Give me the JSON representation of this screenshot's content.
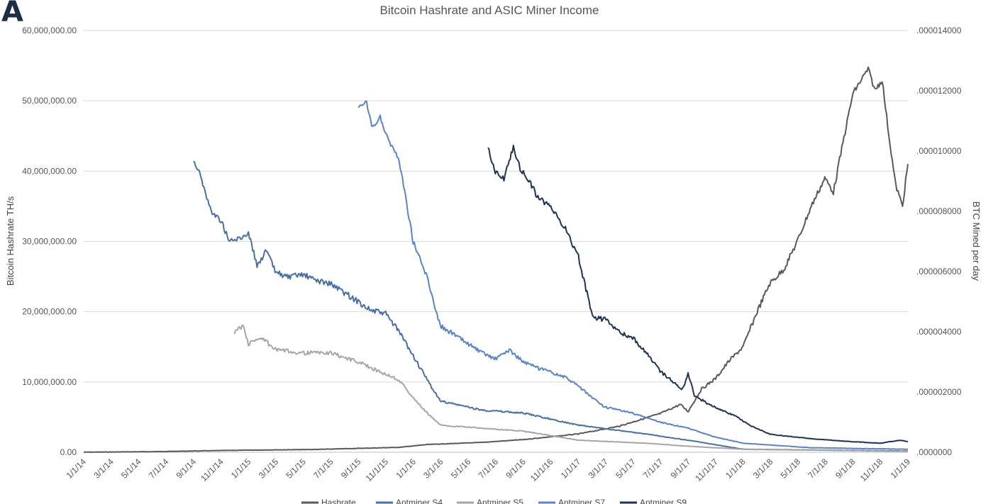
{
  "panel_label": "A",
  "chart_data": {
    "type": "line",
    "title": "Bitcoin Hashrate and ASIC Miner Income",
    "ylabel": "Bitcoin Hashrate TH/s",
    "y2label": "BTC Mined per day",
    "ylim": [
      0,
      60000000
    ],
    "y2lim": [
      0,
      1.4e-05
    ],
    "yticks": [
      "0.00",
      "10,000,000.00",
      "20,000,000.00",
      "30,000,000.00",
      "40,000,000.00",
      "50,000,000.00",
      "60,000,000.00"
    ],
    "y2ticks": [
      ".0000000",
      ".000002000",
      ".000004000",
      ".000006000",
      ".000008000",
      ".000010000",
      ".000012000",
      ".000014000"
    ],
    "xlim": [
      "2014-01-01",
      "2019-01-01"
    ],
    "xticks": [
      "1/1/14",
      "3/1/14",
      "5/1/14",
      "7/1/14",
      "9/1/14",
      "11/1/14",
      "1/1/15",
      "3/1/15",
      "5/1/15",
      "7/1/15",
      "9/1/15",
      "11/1/15",
      "1/1/16",
      "3/1/16",
      "5/1/16",
      "7/1/16",
      "9/1/16",
      "11/1/16",
      "1/1/17",
      "3/1/17",
      "5/1/17",
      "7/1/17",
      "9/1/17",
      "11/1/17",
      "1/1/18",
      "3/1/18",
      "5/1/18",
      "7/1/18",
      "9/1/18",
      "11/1/18",
      "1/1/19"
    ],
    "grid": true,
    "legend_position": "bottom",
    "series": [
      {
        "name": "Hashrate",
        "axis": "left",
        "color": "#595959",
        "points": [
          [
            "2014-01-01",
            10000
          ],
          [
            "2014-06-01",
            80000
          ],
          [
            "2014-09-01",
            180000
          ],
          [
            "2015-01-01",
            300000
          ],
          [
            "2015-06-01",
            400000
          ],
          [
            "2015-12-01",
            700000
          ],
          [
            "2016-02-01",
            1100000
          ],
          [
            "2016-06-01",
            1400000
          ],
          [
            "2016-09-01",
            1800000
          ],
          [
            "2017-01-01",
            2600000
          ],
          [
            "2017-04-01",
            3700000
          ],
          [
            "2017-07-01",
            5500000
          ],
          [
            "2017-08-15",
            6800000
          ],
          [
            "2017-09-01",
            5800000
          ],
          [
            "2017-10-01",
            9000000
          ],
          [
            "2017-11-01",
            10500000
          ],
          [
            "2017-12-01",
            13000000
          ],
          [
            "2018-01-01",
            15000000
          ],
          [
            "2018-02-01",
            20000000
          ],
          [
            "2018-03-01",
            24000000
          ],
          [
            "2018-04-01",
            26000000
          ],
          [
            "2018-05-01",
            30000000
          ],
          [
            "2018-06-01",
            35000000
          ],
          [
            "2018-07-01",
            39000000
          ],
          [
            "2018-07-20",
            37000000
          ],
          [
            "2018-08-10",
            44000000
          ],
          [
            "2018-09-01",
            51000000
          ],
          [
            "2018-09-20",
            53000000
          ],
          [
            "2018-10-05",
            54500000
          ],
          [
            "2018-10-20",
            51500000
          ],
          [
            "2018-11-05",
            53000000
          ],
          [
            "2018-11-20",
            45000000
          ],
          [
            "2018-12-05",
            38000000
          ],
          [
            "2018-12-20",
            35000000
          ],
          [
            "2019-01-01",
            41000000
          ]
        ]
      },
      {
        "name": "Antminer S4",
        "axis": "right",
        "color": "#4a6fa5",
        "points": [
          [
            "2014-09-01",
            9.7e-06
          ],
          [
            "2014-09-15",
            9.3e-06
          ],
          [
            "2014-10-01",
            8.4e-06
          ],
          [
            "2014-10-15",
            7.9e-06
          ],
          [
            "2014-11-01",
            7.7e-06
          ],
          [
            "2014-11-20",
            7e-06
          ],
          [
            "2014-12-15",
            7.1e-06
          ],
          [
            "2015-01-01",
            7.3e-06
          ],
          [
            "2015-01-20",
            6.2e-06
          ],
          [
            "2015-02-10",
            6.7e-06
          ],
          [
            "2015-03-01",
            6e-06
          ],
          [
            "2015-04-01",
            5.8e-06
          ],
          [
            "2015-05-01",
            5.9e-06
          ],
          [
            "2015-06-01",
            5.7e-06
          ],
          [
            "2015-07-01",
            5.6e-06
          ],
          [
            "2015-08-01",
            5.3e-06
          ],
          [
            "2015-09-01",
            5e-06
          ],
          [
            "2015-10-01",
            4.7e-06
          ],
          [
            "2015-11-01",
            4.6e-06
          ],
          [
            "2015-12-01",
            4e-06
          ],
          [
            "2016-01-01",
            3.2e-06
          ],
          [
            "2016-02-01",
            2.4e-06
          ],
          [
            "2016-03-01",
            1.7e-06
          ],
          [
            "2016-04-01",
            1.6e-06
          ],
          [
            "2016-06-01",
            1.4e-06
          ],
          [
            "2016-09-01",
            1.3e-06
          ],
          [
            "2017-01-01",
            9e-07
          ],
          [
            "2017-06-01",
            6e-07
          ],
          [
            "2017-09-01",
            4e-07
          ],
          [
            "2018-01-01",
            1e-07
          ],
          [
            "2019-01-01",
            4e-08
          ]
        ]
      },
      {
        "name": "Antminer S5",
        "axis": "right",
        "color": "#a6a6a6",
        "points": [
          [
            "2014-12-01",
            4e-06
          ],
          [
            "2014-12-20",
            4.2e-06
          ],
          [
            "2015-01-01",
            3.6e-06
          ],
          [
            "2015-02-01",
            3.8e-06
          ],
          [
            "2015-03-01",
            3.4e-06
          ],
          [
            "2015-05-01",
            3.3e-06
          ],
          [
            "2015-07-01",
            3.3e-06
          ],
          [
            "2015-09-01",
            3e-06
          ],
          [
            "2015-10-15",
            2.7e-06
          ],
          [
            "2015-12-01",
            2.4e-06
          ],
          [
            "2016-01-01",
            1.8e-06
          ],
          [
            "2016-02-01",
            1.3e-06
          ],
          [
            "2016-03-01",
            9e-07
          ],
          [
            "2016-06-01",
            8e-07
          ],
          [
            "2016-09-01",
            7e-07
          ],
          [
            "2017-01-01",
            4e-07
          ],
          [
            "2017-06-01",
            3e-07
          ],
          [
            "2017-09-01",
            2e-07
          ],
          [
            "2018-01-01",
            1e-07
          ],
          [
            "2019-01-01",
            3e-08
          ]
        ]
      },
      {
        "name": "Antminer S7",
        "axis": "right",
        "color": "#5b84c4",
        "points": [
          [
            "2015-09-01",
            1.14e-05
          ],
          [
            "2015-09-20",
            1.16e-05
          ],
          [
            "2015-10-01",
            1.08e-05
          ],
          [
            "2015-10-20",
            1.11e-05
          ],
          [
            "2015-11-10",
            1.03e-05
          ],
          [
            "2015-12-01",
            9.7e-06
          ],
          [
            "2016-01-01",
            7e-06
          ],
          [
            "2016-02-01",
            5.8e-06
          ],
          [
            "2016-03-01",
            4.2e-06
          ],
          [
            "2016-04-01",
            3.9e-06
          ],
          [
            "2016-05-01",
            3.6e-06
          ],
          [
            "2016-06-01",
            3.3e-06
          ],
          [
            "2016-07-01",
            3.1e-06
          ],
          [
            "2016-08-01",
            3.4e-06
          ],
          [
            "2016-09-01",
            3e-06
          ],
          [
            "2016-10-01",
            2.8e-06
          ],
          [
            "2016-12-01",
            2.5e-06
          ],
          [
            "2017-01-01",
            2.2e-06
          ],
          [
            "2017-02-01",
            1.8e-06
          ],
          [
            "2017-03-01",
            1.5e-06
          ],
          [
            "2017-05-01",
            1.3e-06
          ],
          [
            "2017-07-01",
            1e-06
          ],
          [
            "2017-09-01",
            8e-07
          ],
          [
            "2017-11-01",
            5e-07
          ],
          [
            "2018-01-01",
            3e-07
          ],
          [
            "2018-06-01",
            1.5e-07
          ],
          [
            "2019-01-01",
            1e-07
          ]
        ]
      },
      {
        "name": "Antminer S9",
        "axis": "right",
        "color": "#1f3355",
        "points": [
          [
            "2016-06-15",
            1.01e-05
          ],
          [
            "2016-07-01",
            9.3e-06
          ],
          [
            "2016-07-20",
            9.1e-06
          ],
          [
            "2016-08-10",
            1.01e-05
          ],
          [
            "2016-08-25",
            9.4e-06
          ],
          [
            "2016-09-15",
            9e-06
          ],
          [
            "2016-10-01",
            8.5e-06
          ],
          [
            "2016-11-01",
            8.1e-06
          ],
          [
            "2016-12-01",
            7.5e-06
          ],
          [
            "2017-01-01",
            6.5e-06
          ],
          [
            "2017-02-01",
            4.5e-06
          ],
          [
            "2017-03-01",
            4.4e-06
          ],
          [
            "2017-04-01",
            4e-06
          ],
          [
            "2017-05-01",
            3.8e-06
          ],
          [
            "2017-06-01",
            3.3e-06
          ],
          [
            "2017-07-01",
            2.7e-06
          ],
          [
            "2017-08-01",
            2.3e-06
          ],
          [
            "2017-08-20",
            2.1e-06
          ],
          [
            "2017-09-01",
            2.6e-06
          ],
          [
            "2017-09-15",
            1.9e-06
          ],
          [
            "2017-10-15",
            1.6e-06
          ],
          [
            "2017-11-15",
            1.4e-06
          ],
          [
            "2017-12-15",
            1.2e-06
          ],
          [
            "2018-01-15",
            9e-07
          ],
          [
            "2018-03-01",
            6e-07
          ],
          [
            "2018-06-01",
            4.5e-07
          ],
          [
            "2018-09-01",
            3.5e-07
          ],
          [
            "2018-11-01",
            3e-07
          ],
          [
            "2018-12-15",
            4e-07
          ],
          [
            "2019-01-01",
            3.5e-07
          ]
        ]
      }
    ]
  }
}
